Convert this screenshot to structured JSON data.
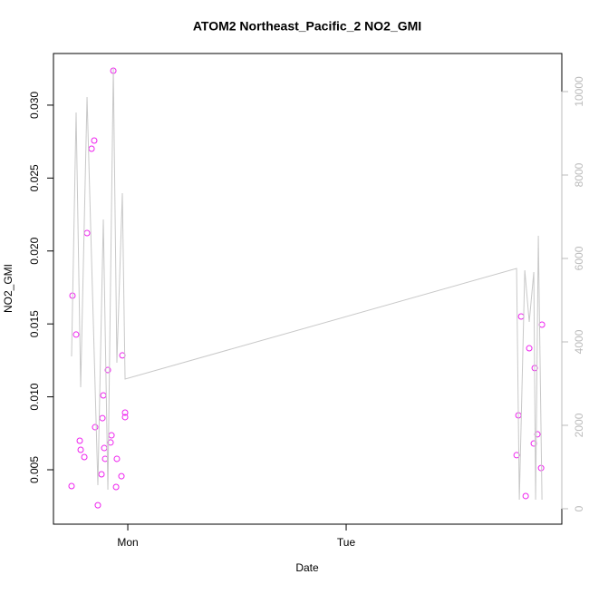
{
  "chart_data": {
    "type": "scatter-line",
    "title": "ATOM2 Northeast_Pacific_2 NO2_GMI",
    "x_label": "Date",
    "y_label": "NO2_GMI",
    "xlim": [
      -8.17,
      47.7
    ],
    "xticks": [
      {
        "value": 0,
        "label": "Mon"
      },
      {
        "value": 24,
        "label": "Tue"
      }
    ],
    "ylim": [
      0.00127,
      0.03354
    ],
    "yticks": [
      0.005,
      {
        "value": 0.01,
        "label": "0.010"
      },
      0.015,
      {
        "value": 0.02,
        "label": "0.020"
      },
      0.025,
      {
        "value": 0.03,
        "label": "0.030"
      }
    ],
    "y2lim": [
      -370,
      10913
    ],
    "y2ticks": [
      0,
      2000,
      4000,
      6000,
      8000,
      10000
    ],
    "series": [
      {
        "type": "scatter",
        "color": "#ee22ee",
        "x": [
          -6.18,
          -6.08,
          -5.68,
          -5.28,
          -5.18,
          -4.78,
          -4.48,
          -3.98,
          -3.69,
          -3.59,
          -3.29,
          -2.89,
          -2.79,
          -2.69,
          -2.59,
          -2.49,
          -2.19,
          -1.89,
          -1.79,
          -1.59,
          -1.29,
          -1.2,
          -0.7,
          -0.6,
          -0.3,
          -0.3,
          42.73,
          42.93,
          43.23,
          43.73,
          44.12,
          44.62,
          44.72,
          45.02,
          45.42,
          45.52
        ],
        "values": [
          0.00388,
          0.01694,
          0.01427,
          0.00699,
          0.00637,
          0.00587,
          0.02123,
          0.02701,
          0.02757,
          0.00792,
          0.00257,
          0.00469,
          0.00854,
          0.0101,
          0.00649,
          0.00575,
          0.01184,
          0.00687,
          0.00736,
          0.03236,
          0.00382,
          0.00575,
          0.00456,
          0.01284,
          0.00861,
          0.00892,
          0.006,
          0.00873,
          0.01551,
          0.0032,
          0.01333,
          0.0068,
          0.01197,
          0.00743,
          0.00512,
          0.01495
        ]
      },
      {
        "type": "line",
        "color": "#c8c8c8",
        "axis": "y2",
        "x": [
          -6.18,
          -5.68,
          -5.18,
          -4.48,
          -3.29,
          -2.69,
          -2.19,
          -1.59,
          -1.2,
          -0.6,
          -0.3,
          42.73,
          43.03,
          43.63,
          44.12,
          44.62,
          44.82,
          45.12,
          45.52
        ],
        "values": [
          3652,
          9500,
          2913,
          9870,
          565,
          6935,
          457,
          10565,
          3500,
          7565,
          3109,
          5761,
          217,
          5717,
          4478,
          5674,
          217,
          6543,
          217
        ]
      }
    ]
  }
}
